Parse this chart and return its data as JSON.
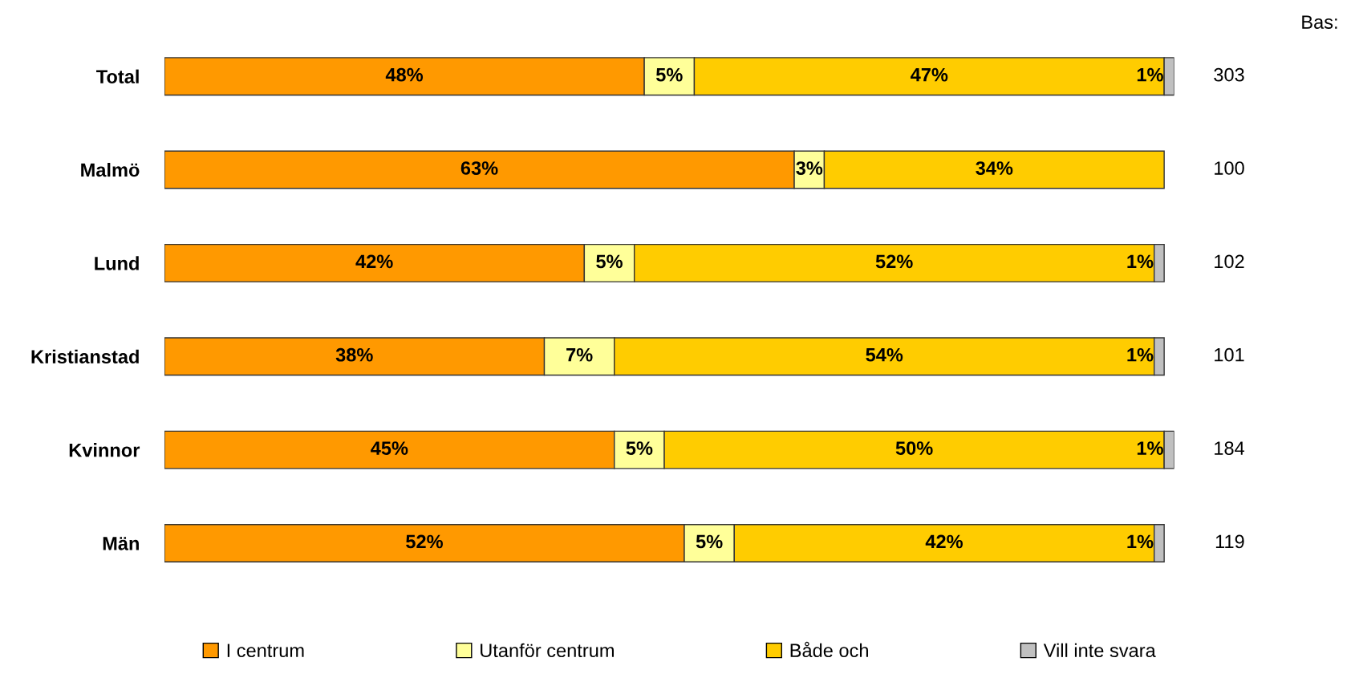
{
  "chart_data": {
    "type": "bar",
    "orientation": "horizontal",
    "stacked": true,
    "tick_labels": "y",
    "grid": false,
    "legend": "bottom",
    "categories": [
      "Total",
      "Malmö",
      "Lund",
      "Kristianstad",
      "Kvinnor",
      "Män"
    ],
    "series": [
      {
        "name": "I centrum",
        "color": "#ff9900",
        "values": [
          48,
          63,
          42,
          38,
          45,
          52
        ],
        "value_labels": [
          "48%",
          "63%",
          "42%",
          "38%",
          "45%",
          "52%"
        ]
      },
      {
        "name": "Utanför centrum",
        "color": "#ffff99",
        "values": [
          5,
          3,
          5,
          7,
          5,
          5
        ],
        "value_labels": [
          "5%",
          "3%",
          "5%",
          "7%",
          "5%",
          "5%"
        ]
      },
      {
        "name": "Både och",
        "color": "#ffcc00",
        "values": [
          47,
          34,
          52,
          54,
          50,
          42
        ],
        "value_labels": [
          "47%",
          "34%",
          "52%",
          "54%",
          "50%",
          "42%"
        ]
      },
      {
        "name": "Vill inte svara",
        "color": "#c0c0c0",
        "values": [
          1,
          null,
          1,
          1,
          1,
          1
        ],
        "value_labels": [
          "1%",
          null,
          "1%",
          "1%",
          "1%",
          "1%"
        ]
      }
    ],
    "annotations": [
      "Bas:",
      "303",
      "100",
      "102",
      "101",
      "184",
      "119"
    ]
  }
}
